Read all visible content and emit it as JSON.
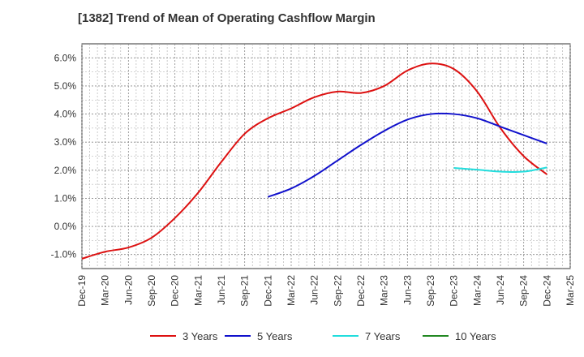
{
  "chart_data": {
    "type": "line",
    "title": "[1382]  Trend of Mean of Operating Cashflow Margin",
    "xlabel": "",
    "ylabel": "",
    "ylim": [
      -1.5,
      6.5
    ],
    "yticks": [
      -1.0,
      0.0,
      1.0,
      2.0,
      3.0,
      4.0,
      5.0,
      6.0
    ],
    "ytick_labels": [
      "-1.0%",
      "0.0%",
      "1.0%",
      "2.0%",
      "3.0%",
      "4.0%",
      "5.0%",
      "6.0%"
    ],
    "categories": [
      "Dec-19",
      "Mar-20",
      "Jun-20",
      "Sep-20",
      "Dec-20",
      "Mar-21",
      "Jun-21",
      "Sep-21",
      "Dec-21",
      "Mar-22",
      "Jun-22",
      "Sep-22",
      "Dec-22",
      "Mar-23",
      "Jun-23",
      "Sep-23",
      "Dec-23",
      "Mar-24",
      "Jun-24",
      "Sep-24",
      "Dec-24",
      "Mar-25"
    ],
    "grid": true,
    "legend_position": "bottom",
    "series": [
      {
        "name": "3 Years",
        "color": "#dd1111",
        "values": [
          -1.15,
          -0.9,
          -0.75,
          -0.4,
          0.3,
          1.2,
          2.3,
          3.3,
          3.85,
          4.2,
          4.6,
          4.8,
          4.75,
          5.0,
          5.55,
          5.8,
          5.6,
          4.8,
          3.5,
          2.5,
          1.85,
          null
        ]
      },
      {
        "name": "5 Years",
        "color": "#1111cc",
        "values": [
          null,
          null,
          null,
          null,
          null,
          null,
          null,
          null,
          1.05,
          1.35,
          1.8,
          2.35,
          2.9,
          3.4,
          3.8,
          4.0,
          4.0,
          3.85,
          3.55,
          3.25,
          2.95,
          null
        ]
      },
      {
        "name": "7 Years",
        "color": "#22dddd",
        "values": [
          null,
          null,
          null,
          null,
          null,
          null,
          null,
          null,
          null,
          null,
          null,
          null,
          null,
          null,
          null,
          null,
          2.08,
          2.02,
          1.95,
          1.95,
          2.1,
          null
        ]
      },
      {
        "name": "10 Years",
        "color": "#228822",
        "values": [
          null,
          null,
          null,
          null,
          null,
          null,
          null,
          null,
          null,
          null,
          null,
          null,
          null,
          null,
          null,
          null,
          null,
          null,
          null,
          null,
          null,
          null
        ]
      }
    ]
  }
}
